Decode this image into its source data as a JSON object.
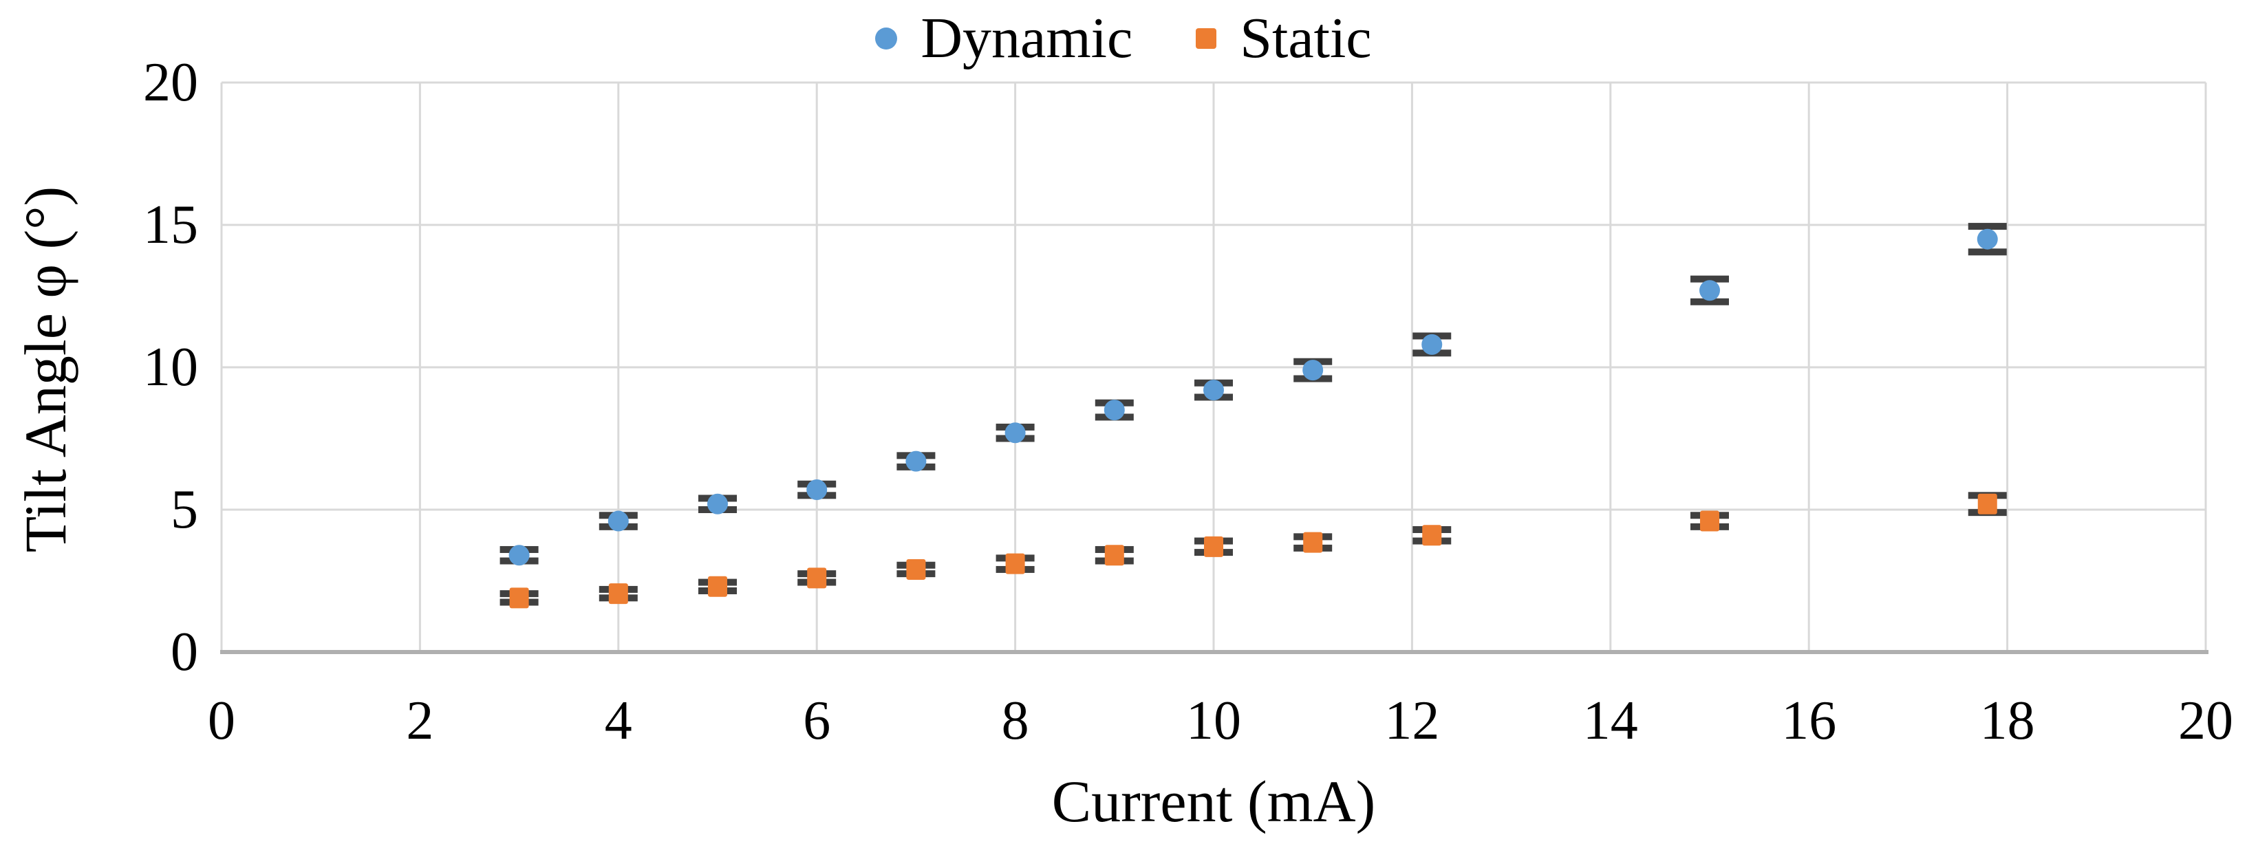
{
  "chart_data": {
    "type": "scatter",
    "title": "",
    "xlabel": "Current (mA)",
    "ylabel": "Tilt Angle φ (°)",
    "xlim": [
      0,
      20
    ],
    "ylim": [
      0,
      20
    ],
    "xticks": [
      0,
      2,
      4,
      6,
      8,
      10,
      12,
      14,
      16,
      18,
      20
    ],
    "yticks": [
      0,
      5,
      10,
      15,
      20
    ],
    "grid": true,
    "legend_position": "top-center",
    "x": [
      3,
      4,
      5,
      6,
      7,
      8,
      9,
      10,
      11,
      12.2,
      15,
      17.8
    ],
    "series": [
      {
        "name": "Dynamic",
        "marker": "circle",
        "color": "#5B9BD5",
        "values": [
          3.4,
          4.6,
          5.2,
          5.7,
          6.7,
          7.7,
          8.5,
          9.2,
          9.9,
          10.8,
          12.7,
          14.5
        ],
        "errors": [
          0.2,
          0.2,
          0.2,
          0.2,
          0.2,
          0.2,
          0.25,
          0.25,
          0.3,
          0.3,
          0.4,
          0.45
        ]
      },
      {
        "name": "Static",
        "marker": "square",
        "color": "#ED7D31",
        "values": [
          1.9,
          2.05,
          2.3,
          2.6,
          2.9,
          3.1,
          3.4,
          3.7,
          3.85,
          4.1,
          4.6,
          5.2
        ],
        "errors": [
          0.15,
          0.15,
          0.15,
          0.15,
          0.15,
          0.2,
          0.2,
          0.2,
          0.2,
          0.2,
          0.2,
          0.3
        ]
      }
    ],
    "error_bar_color": "#404040",
    "gridline_color": "#D9D9D9",
    "axis_line_color": "#AFAFAF",
    "background_color": "#FFFFFF"
  }
}
